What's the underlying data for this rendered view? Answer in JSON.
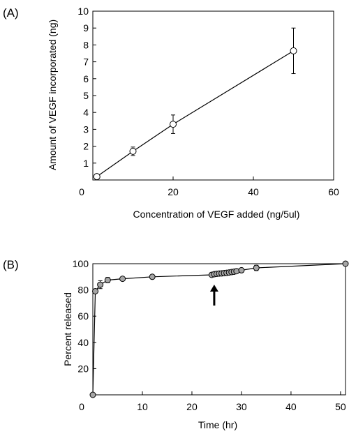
{
  "chart_data": [
    {
      "panel_label": "(A)",
      "type": "line",
      "xlabel": "Concentration of VEGF added (ng/5ul)",
      "ylabel": "Amount of VEGF incorporated (ng)",
      "xlim": [
        0,
        60
      ],
      "ylim": [
        0,
        10
      ],
      "x_ticks": [
        0,
        20,
        40,
        60
      ],
      "y_ticks": [
        1,
        2,
        3,
        4,
        5,
        6,
        7,
        8,
        9,
        10
      ],
      "series": [
        {
          "x": [
            1,
            10,
            20,
            50
          ],
          "y": [
            0.2,
            1.7,
            3.3,
            7.65
          ],
          "error": [
            0,
            0.25,
            0.55,
            1.35
          ],
          "marker": "open-circle",
          "line": "linear-fit"
        }
      ],
      "grid": false
    },
    {
      "panel_label": "(B)",
      "type": "line",
      "xlabel": "Time (hr)",
      "ylabel": "Percent released",
      "xlim": [
        0,
        51
      ],
      "ylim": [
        0,
        100
      ],
      "x_ticks": [
        0,
        10,
        20,
        30,
        40,
        50
      ],
      "y_ticks": [
        20,
        40,
        60,
        80,
        100
      ],
      "series": [
        {
          "x": [
            0,
            0.5,
            1.5,
            3,
            6,
            12,
            24,
            24.5,
            25,
            25.5,
            26,
            26.5,
            27,
            27.5,
            28,
            28.5,
            29,
            30,
            33,
            51
          ],
          "y": [
            0,
            79,
            84,
            87.5,
            88.5,
            90,
            91.5,
            92,
            92.3,
            92.5,
            92.6,
            92.8,
            93,
            93.3,
            93.6,
            93.9,
            94.3,
            95,
            96.8,
            100
          ],
          "error": [
            0,
            1.5,
            3,
            2,
            1,
            1,
            1,
            1,
            1,
            1,
            1,
            1,
            1,
            1,
            1,
            1,
            1,
            1.5,
            2,
            0
          ],
          "marker": "filled-grey-circle"
        }
      ],
      "annotation": {
        "type": "arrow",
        "x": 24.5,
        "direction": "up"
      },
      "grid": false
    }
  ]
}
